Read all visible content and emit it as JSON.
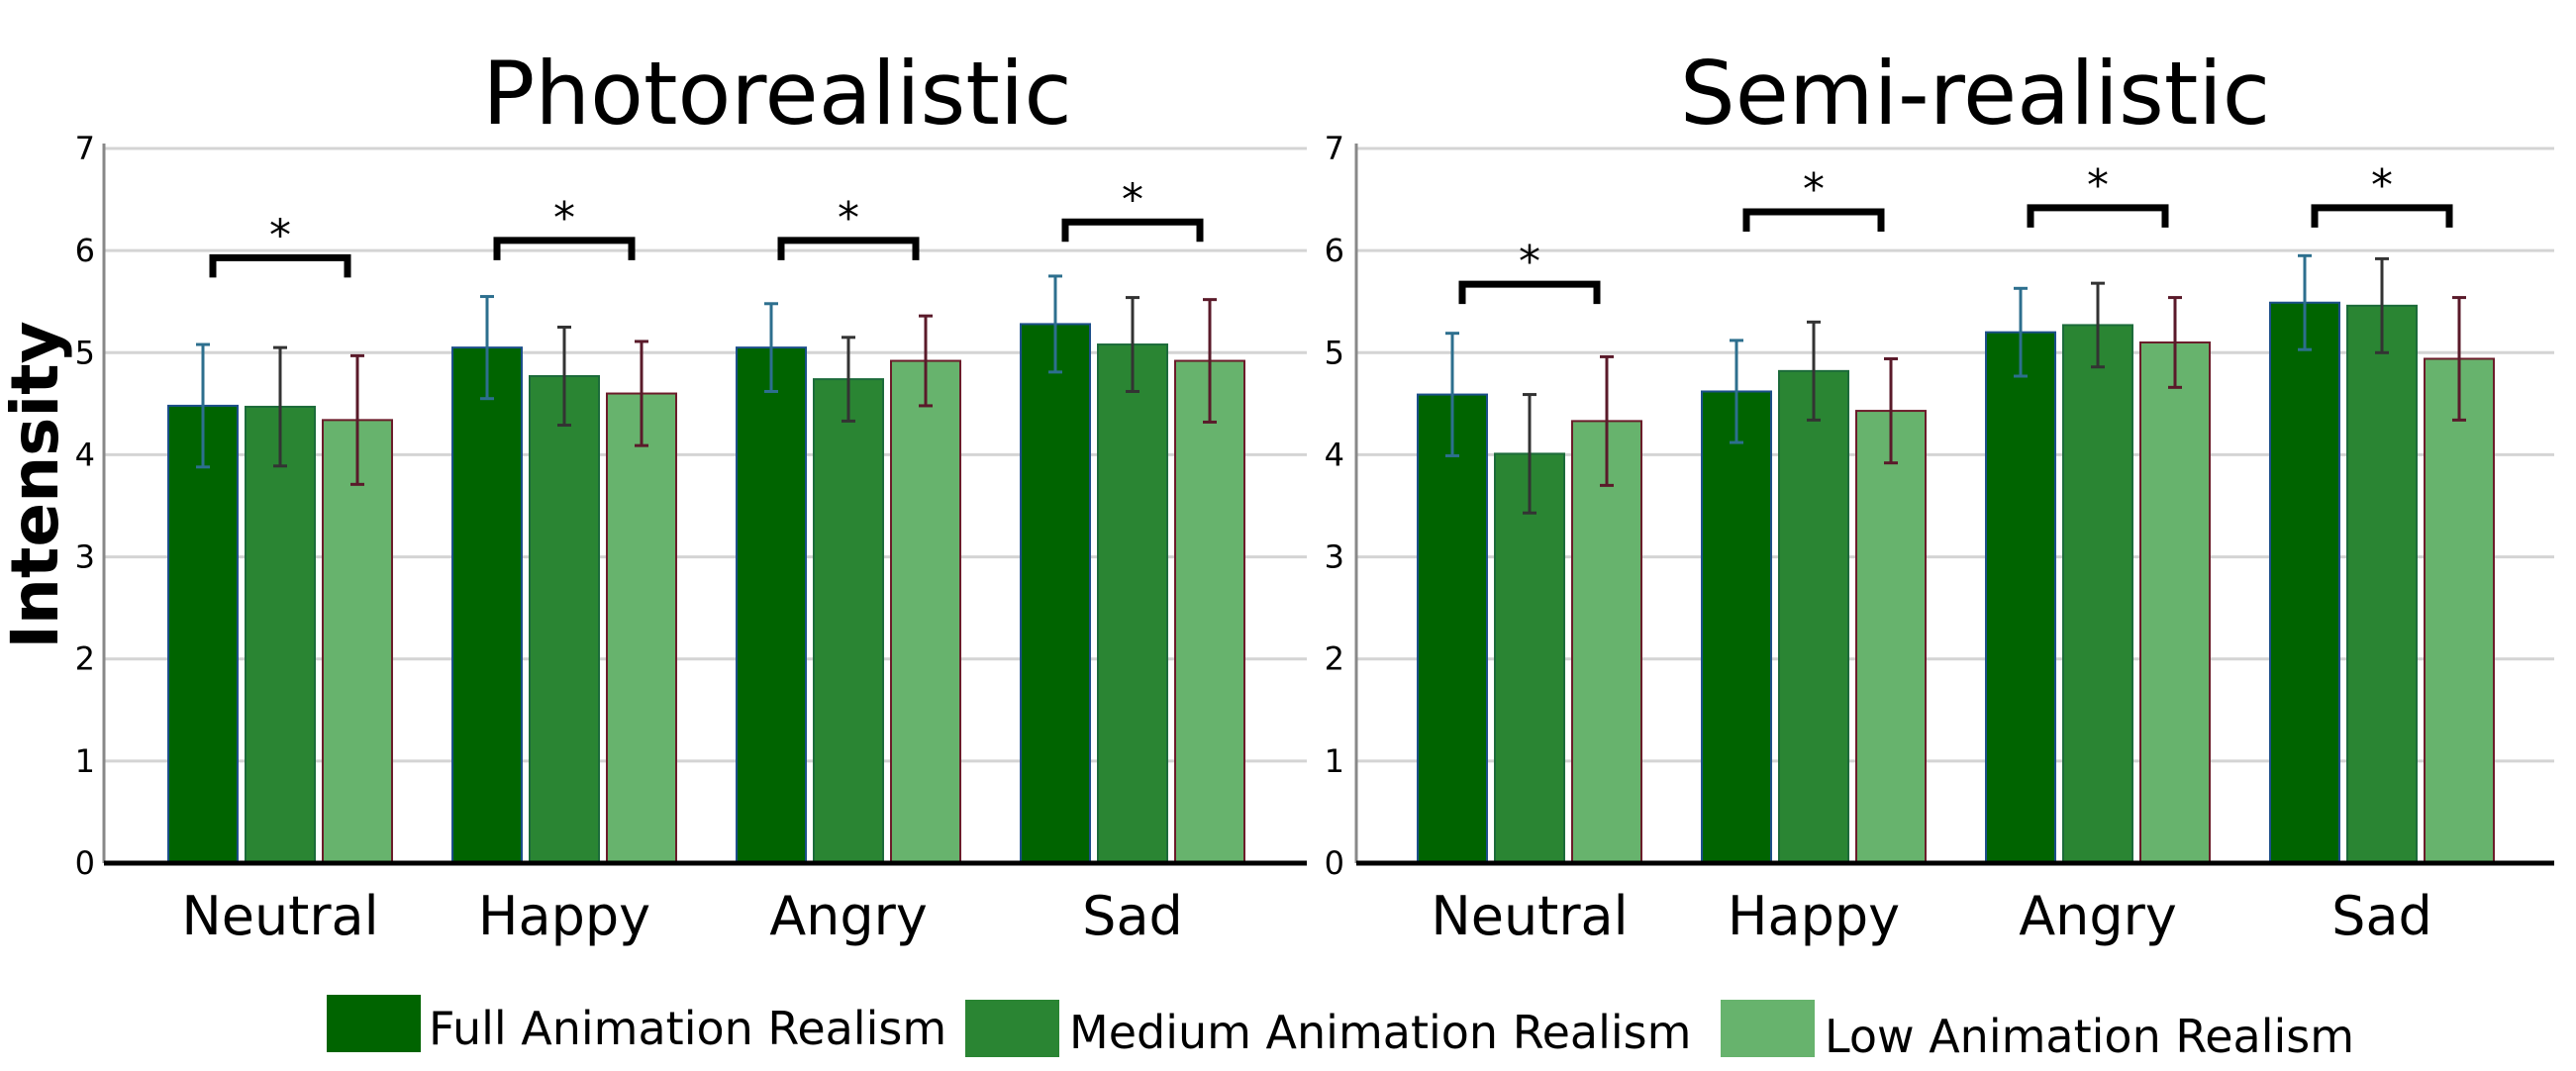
{
  "y_axis_title": "Intensity",
  "legend": [
    {
      "label": "Full Animation Realism",
      "color": "#006400"
    },
    {
      "label": "Medium Animation Realism",
      "color": "#2a8533"
    },
    {
      "label": "Low Animation Realism",
      "color": "#67b36d"
    }
  ],
  "chart_data": [
    {
      "type": "bar",
      "title": "Photorealistic",
      "ylabel": "Intensity",
      "ylim": [
        0,
        7
      ],
      "yticks": [
        "0",
        "1",
        "2",
        "3",
        "4",
        "5",
        "6",
        "7"
      ],
      "categories": [
        "Neutral",
        "Happy",
        "Angry",
        "Sad"
      ],
      "series": [
        {
          "name": "Full Animation Realism",
          "values": [
            4.48,
            5.05,
            5.05,
            5.28
          ],
          "errors": [
            0.6,
            0.5,
            0.43,
            0.47
          ]
        },
        {
          "name": "Medium Animation Realism",
          "values": [
            4.47,
            4.77,
            4.74,
            5.08
          ],
          "errors": [
            0.58,
            0.48,
            0.41,
            0.46
          ]
        },
        {
          "name": "Low Animation Realism",
          "values": [
            4.34,
            4.6,
            4.92,
            4.92
          ],
          "errors": [
            0.63,
            0.51,
            0.44,
            0.6
          ]
        }
      ],
      "significance": [
        {
          "category": "Neutral",
          "level": 5.93,
          "label": "*"
        },
        {
          "category": "Happy",
          "level": 6.1,
          "label": "*"
        },
        {
          "category": "Angry",
          "level": 6.1,
          "label": "*"
        },
        {
          "category": "Sad",
          "level": 6.28,
          "label": "*"
        }
      ]
    },
    {
      "type": "bar",
      "title": "Semi-realistic",
      "ylabel": "Intensity",
      "ylim": [
        0,
        7
      ],
      "yticks": [
        "0",
        "1",
        "2",
        "3",
        "4",
        "5",
        "6",
        "7"
      ],
      "categories": [
        "Neutral",
        "Happy",
        "Angry",
        "Sad"
      ],
      "series": [
        {
          "name": "Full Animation Realism",
          "values": [
            4.59,
            4.62,
            5.2,
            5.49
          ],
          "errors": [
            0.6,
            0.5,
            0.43,
            0.46
          ]
        },
        {
          "name": "Medium Animation Realism",
          "values": [
            4.01,
            4.82,
            5.27,
            5.46
          ],
          "errors": [
            0.58,
            0.48,
            0.41,
            0.46
          ]
        },
        {
          "name": "Low Animation Realism",
          "values": [
            4.33,
            4.43,
            5.1,
            4.94
          ],
          "errors": [
            0.63,
            0.51,
            0.44,
            0.6
          ]
        }
      ],
      "significance": [
        {
          "category": "Neutral",
          "level": 5.67,
          "label": "*"
        },
        {
          "category": "Happy",
          "level": 6.38,
          "label": "*"
        },
        {
          "category": "Angry",
          "level": 6.42,
          "label": "*"
        },
        {
          "category": "Sad",
          "level": 6.42,
          "label": "*"
        }
      ]
    }
  ]
}
